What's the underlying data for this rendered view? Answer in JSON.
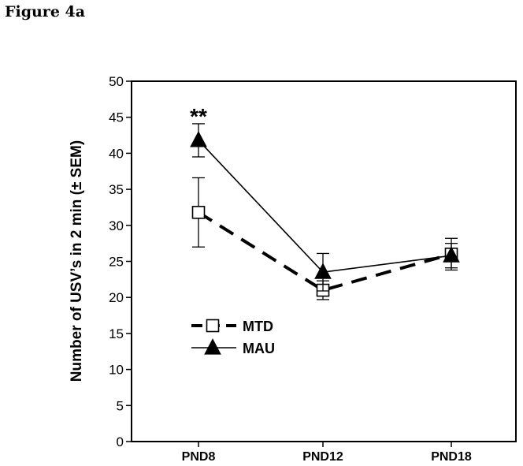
{
  "figure_label": "Figure 4a",
  "chart_data": {
    "type": "line",
    "title": "",
    "xlabel": "",
    "ylabel": "Number of USV’s in 2 min (± SEM)",
    "categories": [
      "PND8",
      "PND12",
      "PND18"
    ],
    "ylim": [
      0,
      50
    ],
    "yticks": [
      "0",
      "5",
      "10",
      "15",
      "20",
      "25",
      "30",
      "35",
      "40",
      "45",
      "50"
    ],
    "grid": false,
    "legend_position": "lower-left",
    "series": [
      {
        "name": "MTD",
        "values": [
          31.8,
          21.0,
          26.0
        ],
        "sem": [
          4.8,
          1.3,
          2.2
        ],
        "line_style": "dashed",
        "marker": "open-square"
      },
      {
        "name": "MAU",
        "values": [
          41.8,
          23.5,
          25.8
        ],
        "sem": [
          2.3,
          2.6,
          1.7
        ],
        "line_style": "solid",
        "marker": "filled-triangle"
      }
    ],
    "annotations": [
      {
        "text": "**",
        "category": "PND8"
      }
    ]
  }
}
